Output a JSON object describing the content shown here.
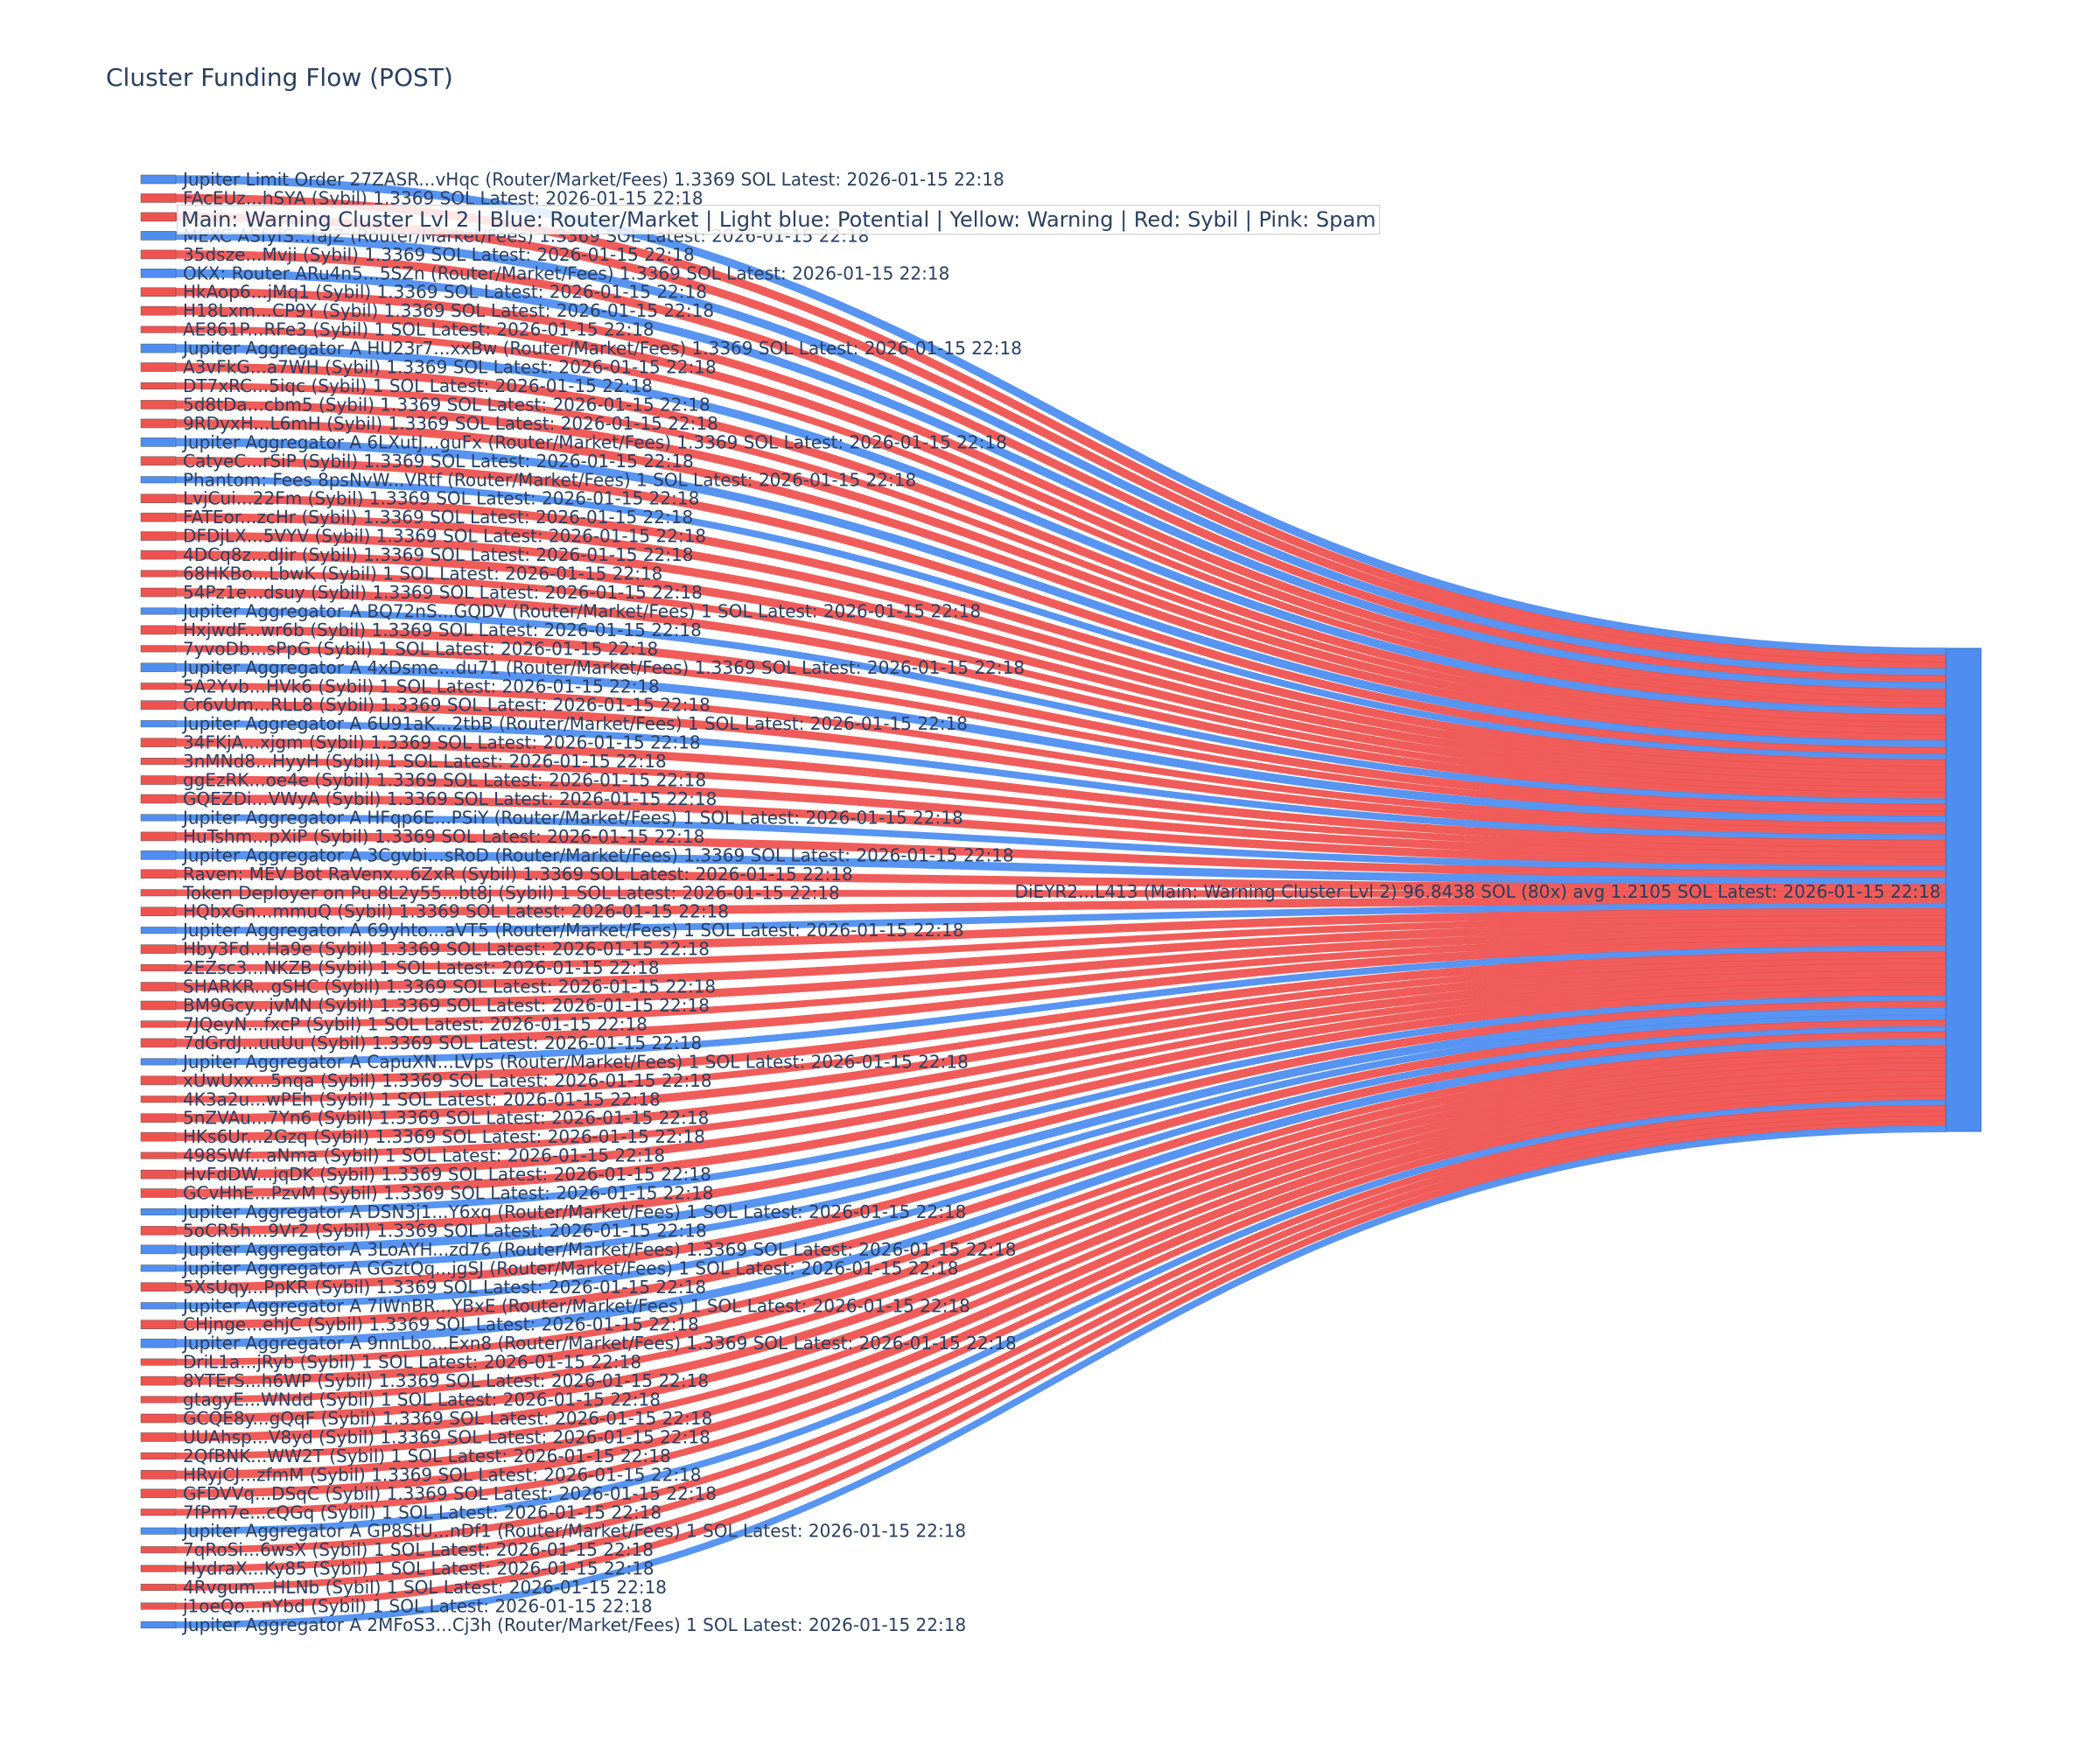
{
  "title": "Cluster Funding Flow (POST)",
  "legend_note": "Main: Warning Cluster Lvl 2  |  Blue: Router/Market | Light blue: Potential | Yellow: Warning | Red: Sybil | Pink: Spam",
  "colors": {
    "router": "#4f8ef0",
    "sybil": "#ef5350",
    "target": "#4f8ef0",
    "text": "#2a3f5f"
  },
  "chart_data": {
    "type": "sankey",
    "title": "Cluster Funding Flow (POST)",
    "target": {
      "label": "DiEYR2...L413 (Main: Warning Cluster Lvl 2) 96.8438 SOL (80x) avg 1.2105 SOL Latest: 2026-01-15 22:18",
      "total": 96.8438,
      "count": 80
    },
    "sources": [
      {
        "label": "Jupiter Limit Order 27ZASR...vHqc (Router/Market/Fees) 1.3369 SOL Latest: 2026-01-15 22:18",
        "value": 1.3369,
        "category": "router"
      },
      {
        "label": "FAcEUz...hSYA (Sybil) 1.3369 SOL Latest: 2026-01-15 22:18",
        "value": 1.3369,
        "category": "sybil"
      },
      {
        "label": "",
        "value": 1.3369,
        "category": "sybil"
      },
      {
        "label": "MEXC ASfyfS...fajZ (Router/Market/Fees) 1.3369 SOL Latest: 2026-01-15 22:18",
        "value": 1.3369,
        "category": "router"
      },
      {
        "label": "35dsze...Mvji (Sybil) 1.3369 SOL Latest: 2026-01-15 22:18",
        "value": 1.3369,
        "category": "sybil"
      },
      {
        "label": "OKX: Router ARu4n5...5SZn (Router/Market/Fees) 1.3369 SOL Latest: 2026-01-15 22:18",
        "value": 1.3369,
        "category": "router"
      },
      {
        "label": "HkAop6...jMq1 (Sybil) 1.3369 SOL Latest: 2026-01-15 22:18",
        "value": 1.3369,
        "category": "sybil"
      },
      {
        "label": "H18Lxm...CP9Y (Sybil) 1.3369 SOL Latest: 2026-01-15 22:18",
        "value": 1.3369,
        "category": "sybil"
      },
      {
        "label": "AE861P...RFe3 (Sybil) 1 SOL Latest: 2026-01-15 22:18",
        "value": 1,
        "category": "sybil"
      },
      {
        "label": "Jupiter Aggregator A HU23r7...xxBw (Router/Market/Fees) 1.3369 SOL Latest: 2026-01-15 22:18",
        "value": 1.3369,
        "category": "router"
      },
      {
        "label": "A3vFkG...a7WH (Sybil) 1.3369 SOL Latest: 2026-01-15 22:18",
        "value": 1.3369,
        "category": "sybil"
      },
      {
        "label": "DT7xRC...5iqc (Sybil) 1 SOL Latest: 2026-01-15 22:18",
        "value": 1,
        "category": "sybil"
      },
      {
        "label": "5d8tDa...cbm5 (Sybil) 1.3369 SOL Latest: 2026-01-15 22:18",
        "value": 1.3369,
        "category": "sybil"
      },
      {
        "label": "9RDyxH...L6mH (Sybil) 1.3369 SOL Latest: 2026-01-15 22:18",
        "value": 1.3369,
        "category": "sybil"
      },
      {
        "label": "Jupiter Aggregator A 6LXutJ...guFx (Router/Market/Fees) 1.3369 SOL Latest: 2026-01-15 22:18",
        "value": 1.3369,
        "category": "router"
      },
      {
        "label": "CatyeC...rSiP (Sybil) 1.3369 SOL Latest: 2026-01-15 22:18",
        "value": 1.3369,
        "category": "sybil"
      },
      {
        "label": "Phantom: Fees 8psNvW...VRtf (Router/Market/Fees) 1 SOL Latest: 2026-01-15 22:18",
        "value": 1,
        "category": "router"
      },
      {
        "label": "LvjCui...22Fm (Sybil) 1.3369 SOL Latest: 2026-01-15 22:18",
        "value": 1.3369,
        "category": "sybil"
      },
      {
        "label": "FATEor...zcHr (Sybil) 1.3369 SOL Latest: 2026-01-15 22:18",
        "value": 1.3369,
        "category": "sybil"
      },
      {
        "label": "DFDjLX...5VYV (Sybil) 1.3369 SOL Latest: 2026-01-15 22:18",
        "value": 1.3369,
        "category": "sybil"
      },
      {
        "label": "4DCq8z...dJir (Sybil) 1.3369 SOL Latest: 2026-01-15 22:18",
        "value": 1.3369,
        "category": "sybil"
      },
      {
        "label": "68HKBo...LbwK (Sybil) 1 SOL Latest: 2026-01-15 22:18",
        "value": 1,
        "category": "sybil"
      },
      {
        "label": "54Pz1e...dsuy (Sybil) 1.3369 SOL Latest: 2026-01-15 22:18",
        "value": 1.3369,
        "category": "sybil"
      },
      {
        "label": "Jupiter Aggregator A BQ72nS...GQDV (Router/Market/Fees) 1 SOL Latest: 2026-01-15 22:18",
        "value": 1,
        "category": "router"
      },
      {
        "label": "HxjwdF...wr6b (Sybil) 1.3369 SOL Latest: 2026-01-15 22:18",
        "value": 1.3369,
        "category": "sybil"
      },
      {
        "label": "7yvoDb...sPpG (Sybil) 1 SOL Latest: 2026-01-15 22:18",
        "value": 1,
        "category": "sybil"
      },
      {
        "label": "Jupiter Aggregator A 4xDsme...du71 (Router/Market/Fees) 1.3369 SOL Latest: 2026-01-15 22:18",
        "value": 1.3369,
        "category": "router"
      },
      {
        "label": "5A2Yvb...HVk6 (Sybil) 1 SOL Latest: 2026-01-15 22:18",
        "value": 1,
        "category": "sybil"
      },
      {
        "label": "Cr6vUm...RLL8 (Sybil) 1.3369 SOL Latest: 2026-01-15 22:18",
        "value": 1.3369,
        "category": "sybil"
      },
      {
        "label": "Jupiter Aggregator A 6U91aK...2tbB (Router/Market/Fees) 1 SOL Latest: 2026-01-15 22:18",
        "value": 1,
        "category": "router"
      },
      {
        "label": "34FKjA...xjgm (Sybil) 1.3369 SOL Latest: 2026-01-15 22:18",
        "value": 1.3369,
        "category": "sybil"
      },
      {
        "label": "3nMNd8...HyyH (Sybil) 1 SOL Latest: 2026-01-15 22:18",
        "value": 1,
        "category": "sybil"
      },
      {
        "label": "ggEzRK...oe4e (Sybil) 1.3369 SOL Latest: 2026-01-15 22:18",
        "value": 1.3369,
        "category": "sybil"
      },
      {
        "label": "GQEZDi...VWyA (Sybil) 1.3369 SOL Latest: 2026-01-15 22:18",
        "value": 1.3369,
        "category": "sybil"
      },
      {
        "label": "Jupiter Aggregator A HFqp6E...PSiY (Router/Market/Fees) 1 SOL Latest: 2026-01-15 22:18",
        "value": 1,
        "category": "router"
      },
      {
        "label": "HuTshm...pXiP (Sybil) 1.3369 SOL Latest: 2026-01-15 22:18",
        "value": 1.3369,
        "category": "sybil"
      },
      {
        "label": "Jupiter Aggregator A 3Cgvbi...sRoD (Router/Market/Fees) 1.3369 SOL Latest: 2026-01-15 22:18",
        "value": 1.3369,
        "category": "router"
      },
      {
        "label": "Raven: MEV Bot RaVenx...6ZxR (Sybil) 1.3369 SOL Latest: 2026-01-15 22:18",
        "value": 1.3369,
        "category": "sybil"
      },
      {
        "label": "Token Deployer on Pu 8L2y55...bt8j (Sybil) 1 SOL Latest: 2026-01-15 22:18",
        "value": 1,
        "category": "sybil"
      },
      {
        "label": "HQbxGn...mmuQ (Sybil) 1.3369 SOL Latest: 2026-01-15 22:18",
        "value": 1.3369,
        "category": "sybil"
      },
      {
        "label": "Jupiter Aggregator A 69yhto...aVT5 (Router/Market/Fees) 1 SOL Latest: 2026-01-15 22:18",
        "value": 1,
        "category": "router"
      },
      {
        "label": "Hby3Fd...Ha9e (Sybil) 1.3369 SOL Latest: 2026-01-15 22:18",
        "value": 1.3369,
        "category": "sybil"
      },
      {
        "label": "2EZsc3...NKZB (Sybil) 1 SOL Latest: 2026-01-15 22:18",
        "value": 1,
        "category": "sybil"
      },
      {
        "label": "SHARKR...gSHC (Sybil) 1.3369 SOL Latest: 2026-01-15 22:18",
        "value": 1.3369,
        "category": "sybil"
      },
      {
        "label": "BM9Gcy...jvMN (Sybil) 1.3369 SOL Latest: 2026-01-15 22:18",
        "value": 1.3369,
        "category": "sybil"
      },
      {
        "label": "7JQeyN...fxcP (Sybil) 1 SOL Latest: 2026-01-15 22:18",
        "value": 1,
        "category": "sybil"
      },
      {
        "label": "7dGrdJ...uuUu (Sybil) 1.3369 SOL Latest: 2026-01-15 22:18",
        "value": 1.3369,
        "category": "sybil"
      },
      {
        "label": "Jupiter Aggregator A CapuXN...LVps (Router/Market/Fees) 1 SOL Latest: 2026-01-15 22:18",
        "value": 1,
        "category": "router"
      },
      {
        "label": "xUwUxx...5nqa (Sybil) 1.3369 SOL Latest: 2026-01-15 22:18",
        "value": 1.3369,
        "category": "sybil"
      },
      {
        "label": "4K3a2u...wPEh (Sybil) 1 SOL Latest: 2026-01-15 22:18",
        "value": 1,
        "category": "sybil"
      },
      {
        "label": "5nZVAu...7Yn6 (Sybil) 1.3369 SOL Latest: 2026-01-15 22:18",
        "value": 1.3369,
        "category": "sybil"
      },
      {
        "label": "HKs6Ur...2Gzq (Sybil) 1.3369 SOL Latest: 2026-01-15 22:18",
        "value": 1.3369,
        "category": "sybil"
      },
      {
        "label": "498SWf...aNma (Sybil) 1 SOL Latest: 2026-01-15 22:18",
        "value": 1,
        "category": "sybil"
      },
      {
        "label": "HvFdDW...jqDK (Sybil) 1.3369 SOL Latest: 2026-01-15 22:18",
        "value": 1.3369,
        "category": "sybil"
      },
      {
        "label": "GCvHhE...PzvM (Sybil) 1.3369 SOL Latest: 2026-01-15 22:18",
        "value": 1.3369,
        "category": "sybil"
      },
      {
        "label": "Jupiter Aggregator A DSN3j1...Y6xq (Router/Market/Fees) 1 SOL Latest: 2026-01-15 22:18",
        "value": 1,
        "category": "router"
      },
      {
        "label": "5oCR5h...9Vr2 (Sybil) 1.3369 SOL Latest: 2026-01-15 22:18",
        "value": 1.3369,
        "category": "sybil"
      },
      {
        "label": "Jupiter Aggregator A 3LoAYH...zd76 (Router/Market/Fees) 1.3369 SOL Latest: 2026-01-15 22:18",
        "value": 1.3369,
        "category": "router"
      },
      {
        "label": "Jupiter Aggregator A GGztQq...jgSJ (Router/Market/Fees) 1 SOL Latest: 2026-01-15 22:18",
        "value": 1,
        "category": "router"
      },
      {
        "label": "5XsUqy...PpKR (Sybil) 1.3369 SOL Latest: 2026-01-15 22:18",
        "value": 1.3369,
        "category": "sybil"
      },
      {
        "label": "Jupiter Aggregator A 7iWnBR...YBxE (Router/Market/Fees) 1 SOL Latest: 2026-01-15 22:18",
        "value": 1,
        "category": "router"
      },
      {
        "label": "CHjnge...ehjC (Sybil) 1.3369 SOL Latest: 2026-01-15 22:18",
        "value": 1.3369,
        "category": "sybil"
      },
      {
        "label": "Jupiter Aggregator A 9nnLbo...Exn8 (Router/Market/Fees) 1.3369 SOL Latest: 2026-01-15 22:18",
        "value": 1.3369,
        "category": "router"
      },
      {
        "label": "DriL1a...jRyb (Sybil) 1 SOL Latest: 2026-01-15 22:18",
        "value": 1,
        "category": "sybil"
      },
      {
        "label": "8YTErS...h6WP (Sybil) 1.3369 SOL Latest: 2026-01-15 22:18",
        "value": 1.3369,
        "category": "sybil"
      },
      {
        "label": "gtagyE...WNdd (Sybil) 1 SOL Latest: 2026-01-15 22:18",
        "value": 1,
        "category": "sybil"
      },
      {
        "label": "GCQE8y...gQqF (Sybil) 1.3369 SOL Latest: 2026-01-15 22:18",
        "value": 1.3369,
        "category": "sybil"
      },
      {
        "label": "UUAhsp...V8yd (Sybil) 1.3369 SOL Latest: 2026-01-15 22:18",
        "value": 1.3369,
        "category": "sybil"
      },
      {
        "label": "2QfBNK...WW2T (Sybil) 1 SOL Latest: 2026-01-15 22:18",
        "value": 1,
        "category": "sybil"
      },
      {
        "label": "HRyjCJ...zfmM (Sybil) 1.3369 SOL Latest: 2026-01-15 22:18",
        "value": 1.3369,
        "category": "sybil"
      },
      {
        "label": "GFDVVq...DSqC (Sybil) 1.3369 SOL Latest: 2026-01-15 22:18",
        "value": 1.3369,
        "category": "sybil"
      },
      {
        "label": "7fPm7e...cQGq (Sybil) 1 SOL Latest: 2026-01-15 22:18",
        "value": 1,
        "category": "sybil"
      },
      {
        "label": "Jupiter Aggregator A GP8StU...nDf1 (Router/Market/Fees) 1 SOL Latest: 2026-01-15 22:18",
        "value": 1,
        "category": "router"
      },
      {
        "label": "7qRoSi...6wsX (Sybil) 1 SOL Latest: 2026-01-15 22:18",
        "value": 1,
        "category": "sybil"
      },
      {
        "label": "HydraX...Ky85 (Sybil) 1 SOL Latest: 2026-01-15 22:18",
        "value": 1,
        "category": "sybil"
      },
      {
        "label": "4Rvgum...HLNb (Sybil) 1 SOL Latest: 2026-01-15 22:18",
        "value": 1,
        "category": "sybil"
      },
      {
        "label": "j1oeQo...nYbd (Sybil) 1 SOL Latest: 2026-01-15 22:18",
        "value": 1,
        "category": "sybil"
      },
      {
        "label": "Jupiter Aggregator A 2MFoS3...Cj3h (Router/Market/Fees) 1 SOL Latest: 2026-01-15 22:18",
        "value": 1,
        "category": "router"
      }
    ]
  }
}
